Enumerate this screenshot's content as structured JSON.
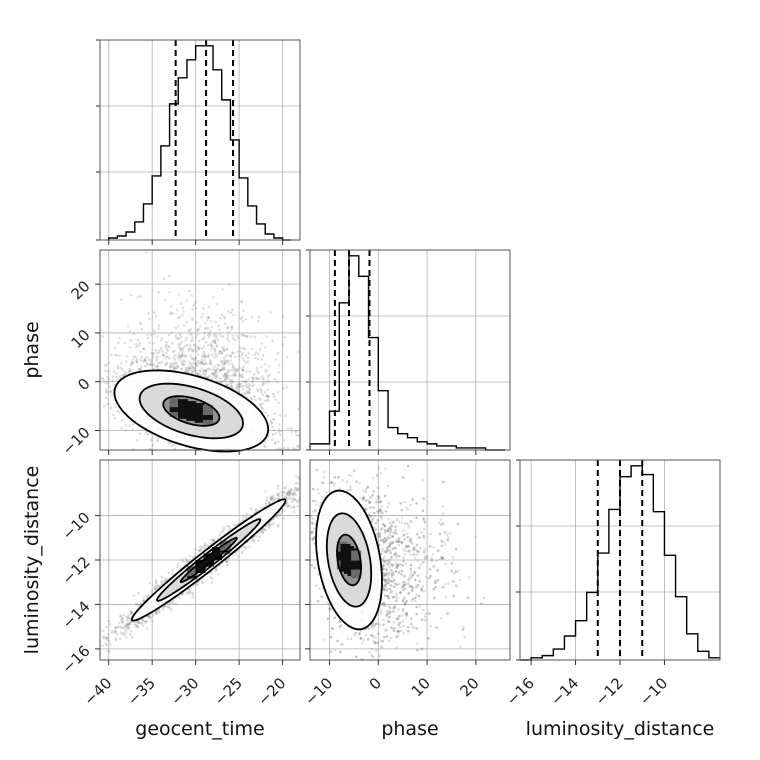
{
  "chart_data": {
    "type": "corner",
    "parameters": [
      "geocent_time",
      "phase",
      "luminosity_distance"
    ],
    "ranges": {
      "geocent_time": [
        -41,
        -18
      ],
      "phase": [
        -14,
        27
      ],
      "luminosity_distance": [
        -16.5,
        -7.5
      ]
    },
    "ticks": {
      "geocent_time": [
        -40,
        -35,
        -30,
        -25,
        -20
      ],
      "phase": [
        -10,
        0,
        10,
        20
      ],
      "luminosity_distance": [
        -16,
        -14,
        -12,
        -10
      ]
    },
    "tick_labels": {
      "geocent_time": [
        "−40",
        "−35",
        "−30",
        "−25",
        "−20"
      ],
      "phase": [
        "−10",
        "0",
        "10",
        "20"
      ],
      "luminosity_distance": [
        "−16",
        "−14",
        "−12",
        "−10"
      ]
    },
    "histograms": {
      "geocent_time": {
        "bin_width": 1,
        "bin_starts": [
          -40,
          -39,
          -38,
          -37,
          -36,
          -35,
          -34,
          -33,
          -32,
          -31,
          -30,
          -29,
          -28,
          -27,
          -26,
          -25,
          -24,
          -23,
          -22,
          -21,
          -20
        ],
        "values": [
          1,
          2,
          4,
          9,
          18,
          32,
          47,
          68,
          81,
          90,
          97,
          97,
          85,
          70,
          50,
          31,
          17,
          8,
          3,
          1,
          0
        ],
        "quantiles": [
          -32.3,
          -28.8,
          -25.7
        ]
      },
      "phase": {
        "bin_width": 2,
        "bin_starts": [
          -14,
          -12,
          -10,
          -8,
          -6,
          -4,
          -2,
          0,
          2,
          4,
          6,
          8,
          10,
          12,
          14,
          16,
          18,
          20,
          22,
          24
        ],
        "values": [
          3,
          3,
          19,
          72,
          95,
          85,
          55,
          29,
          11,
          8,
          6,
          4,
          3,
          2,
          2,
          1,
          1,
          1,
          0,
          0
        ],
        "quantiles": [
          -8.9,
          -6.0,
          -1.8
        ]
      },
      "luminosity_distance": {
        "bin_width": 0.5,
        "bin_starts": [
          -16.5,
          -16,
          -15.5,
          -15,
          -14.5,
          -14,
          -13.5,
          -13,
          -12.5,
          -12,
          -11.5,
          -11,
          -10.5,
          -10,
          -9.5,
          -9,
          -8.5,
          -8
        ],
        "values": [
          0,
          1,
          2,
          5,
          11,
          18,
          31,
          49,
          69,
          84,
          89,
          85,
          68,
          48,
          29,
          12,
          4,
          1
        ],
        "quantiles": [
          -13.0,
          -12.0,
          -11.0
        ]
      }
    },
    "joint": [
      {
        "x": "geocent_time",
        "y": "phase",
        "peak": [
          -30.5,
          -6
        ],
        "contour_levels": [
          0.39,
          0.86,
          0.99
        ]
      },
      {
        "x": "geocent_time",
        "y": "luminosity_distance",
        "peak": [
          -28.5,
          -12
        ],
        "correlation": 0.98,
        "contour_levels": [
          0.39,
          0.86,
          0.99
        ]
      },
      {
        "x": "phase",
        "y": "luminosity_distance",
        "peak": [
          -6,
          -12
        ],
        "contour_levels": [
          0.39,
          0.86,
          0.99
        ]
      }
    ],
    "grid": true,
    "colors": {
      "line": "#000000",
      "quantile": "#000000",
      "density_dark": "#000000",
      "density_light": "#e3e3e3",
      "points": "#8c8c8c",
      "grid": "#b0b0b0"
    }
  }
}
